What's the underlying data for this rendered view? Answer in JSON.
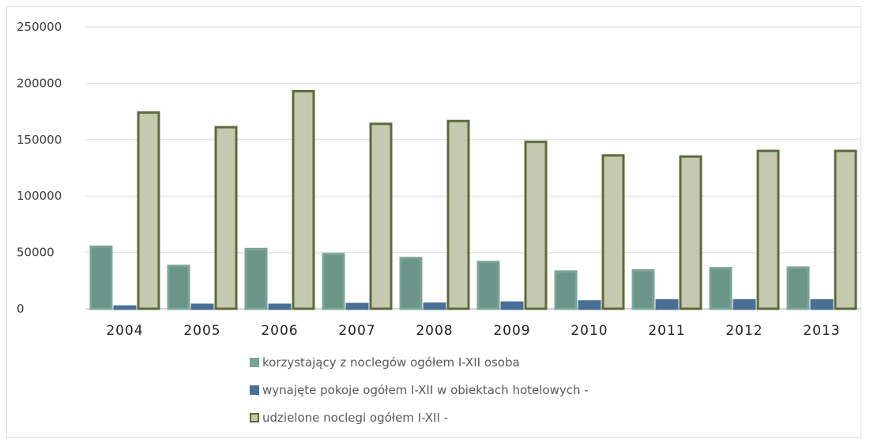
{
  "chart_data": {
    "type": "bar",
    "categories": [
      "2004",
      "2005",
      "2006",
      "2007",
      "2008",
      "2009",
      "2010",
      "2011",
      "2012",
      "2013"
    ],
    "series": [
      {
        "name": "korzystający z noclegów ogółem I-XII osoba",
        "color": "#7aa597",
        "values": [
          55000,
          38000,
          53000,
          48500,
          45000,
          41500,
          33000,
          34000,
          36000,
          36500
        ]
      },
      {
        "name": "wynajęte pokoje ogółem I-XII w obiektach hotelowych -",
        "color": "#4a6f94",
        "values": [
          2000,
          3500,
          3500,
          4200,
          4500,
          5500,
          6500,
          7500,
          7500,
          7500
        ]
      },
      {
        "name": "udzielone noclegi ogółem I-XII -",
        "color": "#c5c9af",
        "values": [
          174000,
          161000,
          193000,
          164000,
          166500,
          148000,
          136000,
          135000,
          140000,
          140000
        ]
      }
    ],
    "ylim": [
      0,
      250000
    ],
    "yticks": [
      "0",
      "50000",
      "100000",
      "150000",
      "200000",
      "250000"
    ],
    "title": "",
    "xlabel": "",
    "ylabel": "",
    "grid": true,
    "legend_position": "bottom"
  }
}
